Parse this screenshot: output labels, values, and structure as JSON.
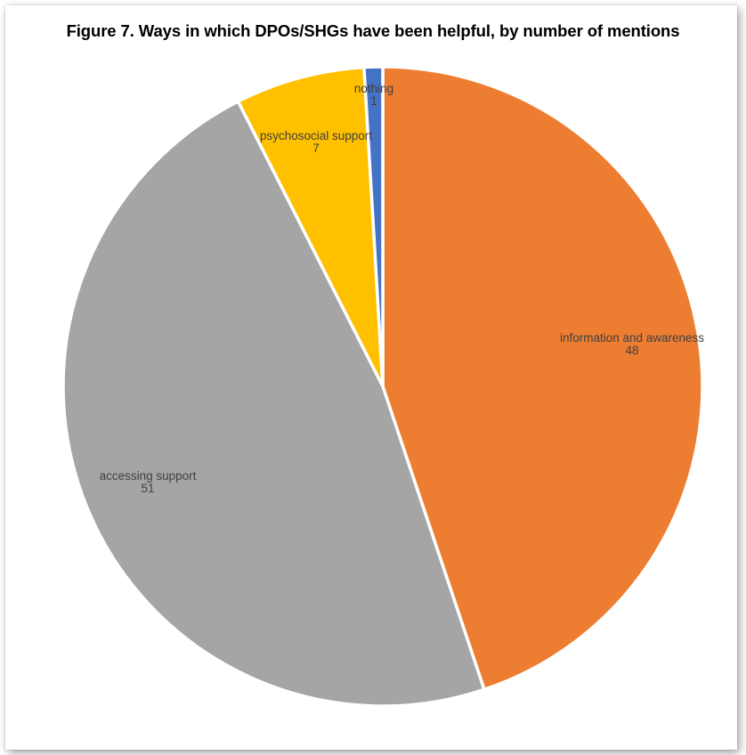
{
  "title": "Figure 7. Ways in which DPOs/SHGs have been helpful, by number of mentions",
  "chart_data": {
    "type": "pie",
    "title": "Figure 7. Ways in which DPOs/SHGs have been helpful, by number of mentions",
    "slices": [
      {
        "label": "information and awareness",
        "value": 48,
        "color": "#ED7D31"
      },
      {
        "label": "accessing support",
        "value": 51,
        "color": "#A5A5A5"
      },
      {
        "label": "psychosocial support",
        "value": 7,
        "color": "#FFC000"
      },
      {
        "label": "nothing",
        "value": 1,
        "color": "#4472C4"
      }
    ],
    "start": "12 o'clock",
    "direction": "clockwise",
    "data_labels": "category name and value"
  }
}
